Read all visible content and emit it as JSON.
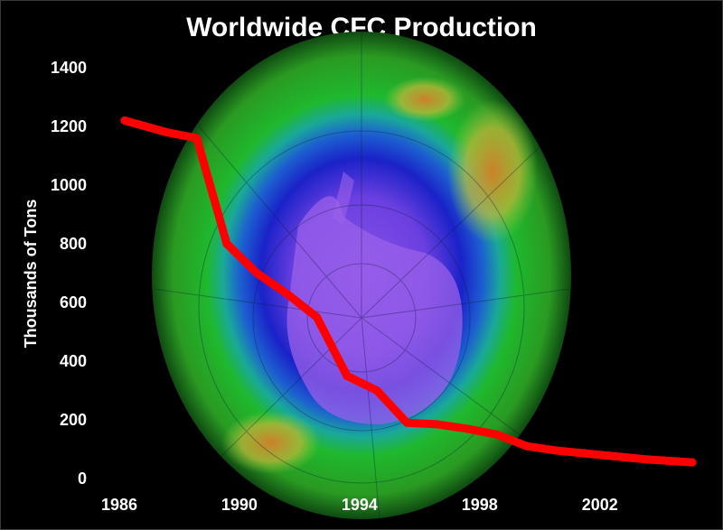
{
  "chart_data": {
    "type": "line",
    "title": "Worldwide CFC Production",
    "xlabel": "",
    "ylabel": "Thousands of Tons",
    "xlim": [
      1986,
      2005.8
    ],
    "ylim": [
      0,
      1400
    ],
    "x_ticks": [
      "1986",
      "1990",
      "1994",
      "1998",
      "2002"
    ],
    "y_ticks": [
      "0",
      "200",
      "400",
      "600",
      "800",
      "1000",
      "1200",
      "1400"
    ],
    "grid": false,
    "background": "ozone hole globe image",
    "series": [
      {
        "color": "#ff0000",
        "x": [
          1986.6,
          1988,
          1989,
          1990,
          1991,
          1992,
          1993,
          1994,
          1995,
          1996,
          1997,
          1998,
          1999,
          2000,
          2001,
          2002,
          2003,
          2004,
          2005.5
        ],
        "y": [
          1220,
          1180,
          1160,
          800,
          700,
          630,
          550,
          350,
          300,
          190,
          185,
          170,
          150,
          110,
          95,
          85,
          75,
          65,
          55
        ]
      }
    ]
  }
}
